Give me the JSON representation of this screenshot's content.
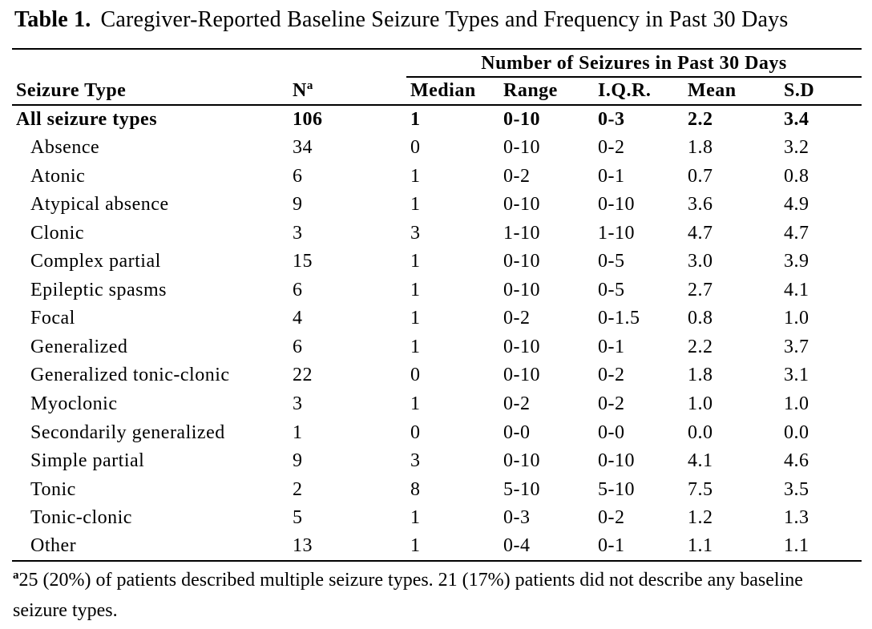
{
  "title": {
    "label": "Table 1.",
    "caption": "Caregiver-Reported Baseline Seizure Types and Frequency in Past 30 Days"
  },
  "table": {
    "span_header": "Number of Seizures in Past 30 Days",
    "col_headers": {
      "type": "Seizure Type",
      "n_base": "N",
      "n_sup": "a",
      "stats": [
        "Median",
        "Range",
        "I.Q.R.",
        "Mean",
        "S.D"
      ]
    },
    "rows": [
      {
        "label": "All seizure types",
        "bold": true,
        "values": [
          "106",
          "1",
          "0-10",
          "0-3",
          "2.2",
          "3.4"
        ]
      },
      {
        "label": "Absence",
        "bold": false,
        "values": [
          "34",
          "0",
          "0-10",
          "0-2",
          "1.8",
          "3.2"
        ]
      },
      {
        "label": "Atonic",
        "bold": false,
        "values": [
          "6",
          "1",
          "0-2",
          "0-1",
          "0.7",
          "0.8"
        ]
      },
      {
        "label": "Atypical absence",
        "bold": false,
        "values": [
          "9",
          "1",
          "0-10",
          "0-10",
          "3.6",
          "4.9"
        ]
      },
      {
        "label": "Clonic",
        "bold": false,
        "values": [
          "3",
          "3",
          "1-10",
          "1-10",
          "4.7",
          "4.7"
        ]
      },
      {
        "label": "Complex partial",
        "bold": false,
        "values": [
          "15",
          "1",
          "0-10",
          "0-5",
          "3.0",
          "3.9"
        ]
      },
      {
        "label": "Epileptic spasms",
        "bold": false,
        "values": [
          "6",
          "1",
          "0-10",
          "0-5",
          "2.7",
          "4.1"
        ]
      },
      {
        "label": "Focal",
        "bold": false,
        "values": [
          "4",
          "1",
          "0-2",
          "0-1.5",
          "0.8",
          "1.0"
        ]
      },
      {
        "label": "Generalized",
        "bold": false,
        "values": [
          "6",
          "1",
          "0-10",
          "0-1",
          "2.2",
          "3.7"
        ]
      },
      {
        "label": "Generalized tonic-clonic",
        "bold": false,
        "values": [
          "22",
          "0",
          "0-10",
          "0-2",
          "1.8",
          "3.1"
        ]
      },
      {
        "label": "Myoclonic",
        "bold": false,
        "values": [
          "3",
          "1",
          "0-2",
          "0-2",
          "1.0",
          "1.0"
        ]
      },
      {
        "label": "Secondarily generalized",
        "bold": false,
        "values": [
          "1",
          "0",
          "0-0",
          "0-0",
          "0.0",
          "0.0"
        ]
      },
      {
        "label": "Simple partial",
        "bold": false,
        "values": [
          "9",
          "3",
          "0-10",
          "0-10",
          "4.1",
          "4.6"
        ]
      },
      {
        "label": "Tonic",
        "bold": false,
        "values": [
          "2",
          "8",
          "5-10",
          "5-10",
          "7.5",
          "3.5"
        ]
      },
      {
        "label": "Tonic-clonic",
        "bold": false,
        "values": [
          "5",
          "1",
          "0-3",
          "0-2",
          "1.2",
          "1.3"
        ]
      },
      {
        "label": "Other",
        "bold": false,
        "values": [
          "13",
          "1",
          "0-4",
          "0-1",
          "1.1",
          "1.1"
        ]
      }
    ]
  },
  "footnote": {
    "marker": "a",
    "text": "25 (20%) of patients described multiple seizure types. 21 (17%) patients did not describe any baseline seizure types."
  },
  "colors": {
    "text": "#000000",
    "background": "#ffffff",
    "rule": "#000000"
  }
}
